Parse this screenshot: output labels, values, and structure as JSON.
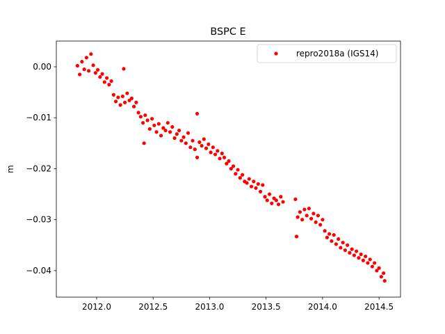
{
  "chart_data": {
    "type": "scatter",
    "title": "BSPC E",
    "y_label": "m",
    "xlim": [
      2011.643,
      2014.69
    ],
    "ylim": [
      -0.0452,
      0.00505
    ],
    "xticks": [
      {
        "value": 2012.0,
        "label": "2012.0"
      },
      {
        "value": 2012.5,
        "label": "2012.5"
      },
      {
        "value": 2013.0,
        "label": "2013.0"
      },
      {
        "value": 2013.5,
        "label": "2013.5"
      },
      {
        "value": 2014.0,
        "label": "2014.0"
      },
      {
        "value": 2014.5,
        "label": "2014.5"
      }
    ],
    "yticks": [
      {
        "value": 0.0,
        "label": "0.00"
      },
      {
        "value": -0.01,
        "label": "−0.01"
      },
      {
        "value": -0.02,
        "label": "−0.02"
      },
      {
        "value": -0.03,
        "label": "−0.03"
      },
      {
        "value": -0.04,
        "label": "−0.04"
      }
    ],
    "legend": "upper right",
    "series": [
      {
        "name": "repro2018a (IGS14)",
        "color": "#ff0000",
        "x": [
          2011.83,
          2011.85,
          2011.87,
          2011.89,
          2011.91,
          2011.93,
          2011.95,
          2011.97,
          2011.99,
          2012.01,
          2012.03,
          2012.05,
          2012.07,
          2012.09,
          2012.11,
          2012.13,
          2012.15,
          2012.17,
          2012.19,
          2012.21,
          2012.23,
          2012.25,
          2012.27,
          2012.29,
          2012.31,
          2012.33,
          2012.35,
          2012.37,
          2012.39,
          2012.41,
          2012.43,
          2012.45,
          2012.47,
          2012.49,
          2012.51,
          2012.53,
          2012.55,
          2012.57,
          2012.59,
          2012.61,
          2012.63,
          2012.65,
          2012.67,
          2012.69,
          2012.71,
          2012.73,
          2012.75,
          2012.77,
          2012.79,
          2012.81,
          2012.83,
          2012.85,
          2012.87,
          2012.89,
          2012.91,
          2012.93,
          2012.95,
          2012.97,
          2012.99,
          2013.01,
          2013.03,
          2013.05,
          2013.07,
          2013.09,
          2013.11,
          2013.13,
          2013.15,
          2013.17,
          2013.19,
          2013.21,
          2013.23,
          2013.25,
          2013.27,
          2013.29,
          2013.31,
          2013.33,
          2013.35,
          2013.37,
          2013.39,
          2013.41,
          2013.43,
          2013.45,
          2013.47,
          2013.49,
          2013.51,
          2013.53,
          2013.55,
          2013.57,
          2013.59,
          2013.61,
          2013.63,
          2013.65,
          2013.76,
          2013.78,
          2013.8,
          2013.82,
          2013.84,
          2013.86,
          2013.88,
          2013.9,
          2013.92,
          2013.94,
          2013.96,
          2013.98,
          2014.0,
          2014.02,
          2014.04,
          2014.06,
          2014.08,
          2014.1,
          2014.12,
          2014.14,
          2014.16,
          2014.18,
          2014.2,
          2014.22,
          2014.24,
          2014.26,
          2014.28,
          2014.3,
          2014.32,
          2014.34,
          2014.36,
          2014.38,
          2014.4,
          2014.42,
          2014.44,
          2014.46,
          2014.48,
          2014.5,
          2014.52,
          2014.54,
          2014.55,
          2012.24,
          2012.89,
          2012.42,
          2013.77
        ],
        "values": [
          0.0002,
          -0.0015,
          0.001,
          -0.0005,
          0.0018,
          -0.0008,
          0.0025,
          0.0003,
          -0.0012,
          -0.0006,
          -0.002,
          -0.0014,
          -0.003,
          -0.0022,
          -0.0035,
          -0.0028,
          -0.0055,
          -0.0068,
          -0.006,
          -0.0075,
          -0.0058,
          -0.007,
          -0.0052,
          -0.0066,
          -0.0062,
          -0.0078,
          -0.007,
          -0.009,
          -0.0098,
          -0.011,
          -0.0095,
          -0.0105,
          -0.0122,
          -0.0102,
          -0.0115,
          -0.0128,
          -0.0112,
          -0.0135,
          -0.012,
          -0.0125,
          -0.011,
          -0.0128,
          -0.0118,
          -0.014,
          -0.0132,
          -0.0125,
          -0.0145,
          -0.0138,
          -0.015,
          -0.013,
          -0.0158,
          -0.0145,
          -0.0162,
          -0.0178,
          -0.0148,
          -0.0155,
          -0.0142,
          -0.016,
          -0.0152,
          -0.0168,
          -0.0158,
          -0.0172,
          -0.0165,
          -0.018,
          -0.017,
          -0.0178,
          -0.019,
          -0.0185,
          -0.02,
          -0.0195,
          -0.021,
          -0.0202,
          -0.0218,
          -0.0212,
          -0.0225,
          -0.0228,
          -0.022,
          -0.0235,
          -0.0225,
          -0.0238,
          -0.023,
          -0.0245,
          -0.0232,
          -0.0255,
          -0.0262,
          -0.025,
          -0.0268,
          -0.0258,
          -0.0262,
          -0.027,
          -0.0255,
          -0.0265,
          -0.026,
          -0.0295,
          -0.0285,
          -0.03,
          -0.028,
          -0.0292,
          -0.0278,
          -0.0298,
          -0.0288,
          -0.0305,
          -0.0292,
          -0.031,
          -0.03,
          -0.0322,
          -0.0335,
          -0.0328,
          -0.0342,
          -0.033,
          -0.0348,
          -0.0338,
          -0.0355,
          -0.0345,
          -0.036,
          -0.035,
          -0.0365,
          -0.0358,
          -0.037,
          -0.0362,
          -0.0375,
          -0.0368,
          -0.038,
          -0.0372,
          -0.0385,
          -0.0378,
          -0.0392,
          -0.0385,
          -0.04,
          -0.0395,
          -0.0412,
          -0.0405,
          -0.042,
          -0.0004,
          -0.0092,
          -0.015,
          -0.0333
        ]
      }
    ]
  }
}
